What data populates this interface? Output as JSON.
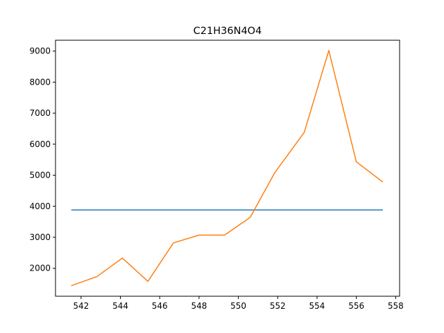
{
  "chart_data": {
    "type": "line",
    "title": "C21H36N4O4",
    "xlabel": "",
    "ylabel": "",
    "xlim": [
      540.7,
      558.2
    ],
    "ylim": [
      1100,
      9350
    ],
    "xticks": [
      542,
      544,
      546,
      548,
      550,
      552,
      554,
      556,
      558
    ],
    "yticks": [
      2000,
      3000,
      4000,
      5000,
      6000,
      7000,
      8000,
      9000
    ],
    "grid": false,
    "series": [
      {
        "color": "#1f77b4",
        "x": [
          541.5,
          557.35
        ],
        "y": [
          3880,
          3880
        ]
      },
      {
        "color": "#ff7f0e",
        "x": [
          541.5,
          542.8,
          544.1,
          545.4,
          546.7,
          548.0,
          549.3,
          550.6,
          551.85,
          553.35,
          554.6,
          556.0,
          557.35
        ],
        "y": [
          1440,
          1730,
          2330,
          1580,
          2820,
          3070,
          3070,
          3640,
          5080,
          6380,
          9020,
          5430,
          4780
        ]
      }
    ]
  }
}
